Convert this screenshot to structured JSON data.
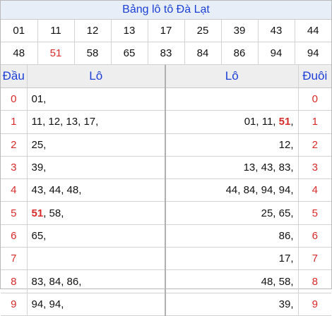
{
  "title": "Bảng lô tô Đà Lạt",
  "numbers_row1": [
    "01",
    "11",
    "12",
    "13",
    "17",
    "25",
    "39",
    "43",
    "44"
  ],
  "numbers_row2": [
    "48",
    "51",
    "58",
    "65",
    "83",
    "84",
    "86",
    "94",
    "94"
  ],
  "highlight_number": "51",
  "headers": {
    "dau": "Đầu",
    "lo_left": "Lô",
    "lo_right": "Lô",
    "duoi": "Đuôi"
  },
  "rows": [
    {
      "dau": "0",
      "lo_left": "01,",
      "lo_right": "",
      "duoi": "0"
    },
    {
      "dau": "1",
      "lo_left": "11, 12, 13, 17,",
      "lo_right": "01, 11, 51,",
      "duoi": "1"
    },
    {
      "dau": "2",
      "lo_left": "25,",
      "lo_right": "12,",
      "duoi": "2"
    },
    {
      "dau": "3",
      "lo_left": "39,",
      "lo_right": "13, 43, 83,",
      "duoi": "3"
    },
    {
      "dau": "4",
      "lo_left": "43, 44, 48,",
      "lo_right": "44, 84, 94, 94,",
      "duoi": "4"
    },
    {
      "dau": "5",
      "lo_left": "51, 58,",
      "lo_right": "25, 65,",
      "duoi": "5"
    },
    {
      "dau": "6",
      "lo_left": "65,",
      "lo_right": "86,",
      "duoi": "6"
    },
    {
      "dau": "7",
      "lo_left": "",
      "lo_right": "17,",
      "duoi": "7"
    },
    {
      "dau": "8",
      "lo_left": "83, 84, 86,",
      "lo_right": "48, 58,",
      "duoi": "8"
    },
    {
      "dau": "9",
      "lo_left": "94, 94,",
      "lo_right": "39,",
      "duoi": "9"
    }
  ],
  "colors": {
    "title_text": "#1c3fd6",
    "highlight": "#d72a2a",
    "title_bg": "#e7eef7"
  }
}
